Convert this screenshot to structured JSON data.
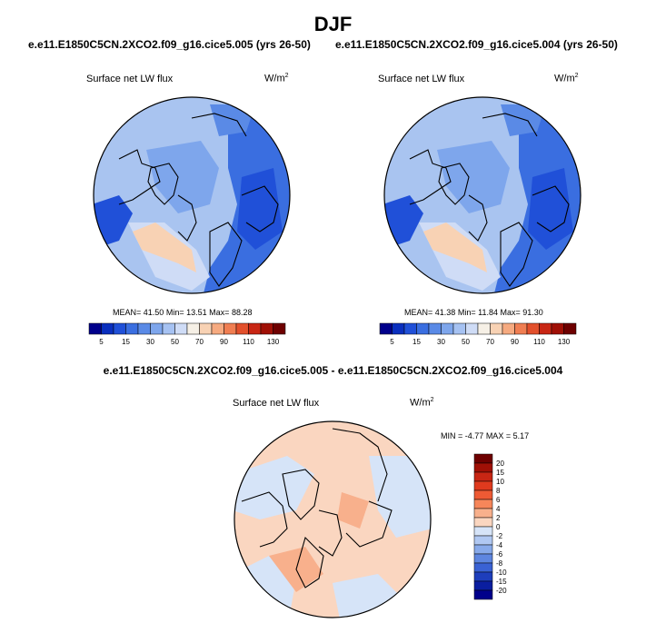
{
  "chart_data": {
    "type": "heatmap",
    "title": "DJF",
    "variable": "Surface net LW flux",
    "units_base": "W/m",
    "units_exp": "2",
    "panels": [
      {
        "subtitle": "e.e11.E1850C5CN.2XCO2.f09_g16.cice5.005 (yrs 26-50)",
        "label": "Surface net LW flux",
        "stats": {
          "mean_label": "MEAN=",
          "mean": "41.50",
          "min_label": "Min=",
          "min": "13.51",
          "max_label": "Max=",
          "max": "88.28"
        }
      },
      {
        "subtitle": "e.e11.E1850C5CN.2XCO2.f09_g16.cice5.004 (yrs 26-50)",
        "label": "Surface net LW flux",
        "stats": {
          "mean_label": "MEAN=",
          "mean": "41.38",
          "min_label": "Min=",
          "min": "11.84",
          "max_label": "Max=",
          "max": "91.30"
        }
      }
    ],
    "abs_colorbar": {
      "levels": [
        5,
        10,
        15,
        20,
        30,
        40,
        50,
        60,
        70,
        80,
        90,
        100,
        110,
        120,
        130
      ],
      "tick_labels": [
        "5",
        "15",
        "30",
        "50",
        "70",
        "90",
        "110",
        "130"
      ],
      "colors": [
        "#00008b",
        "#0a2fbe",
        "#2050d8",
        "#3a6ee0",
        "#5a8ae6",
        "#7ea6ec",
        "#a6c2f2",
        "#cfdcf6",
        "#f6f0e6",
        "#f8d2b4",
        "#f6aa80",
        "#f07e52",
        "#e2502c",
        "#c82614",
        "#a01006",
        "#6e0000"
      ]
    },
    "diff_panel": {
      "subtitle": "e.e11.E1850C5CN.2XCO2.f09_g16.cice5.005 - e.e11.E1850C5CN.2XCO2.f09_g16.cice5.004",
      "label": "Surface net LW flux",
      "min_label": "MIN =",
      "min": "-4.77",
      "max_label": "MAX =",
      "max": "5.17"
    },
    "diff_colorbar": {
      "levels": [
        20,
        15,
        10,
        8,
        6,
        4,
        2,
        0,
        -2,
        -4,
        -6,
        -8,
        -10,
        -15,
        -20
      ],
      "tick_labels": [
        "20",
        "15",
        "10",
        "8",
        "6",
        "4",
        "2",
        "0",
        "-2",
        "-4",
        "-6",
        "-8",
        "-10",
        "-15",
        "-20"
      ],
      "colors": [
        "#6e0000",
        "#a01006",
        "#c82614",
        "#e03a1e",
        "#ee5a34",
        "#f6865a",
        "#f8b08c",
        "#fad6c0",
        "#d6e4f8",
        "#b0c8f2",
        "#88aaea",
        "#5e86e0",
        "#3a62d4",
        "#1e3ebc",
        "#0a1ea0",
        "#00008b"
      ]
    }
  }
}
